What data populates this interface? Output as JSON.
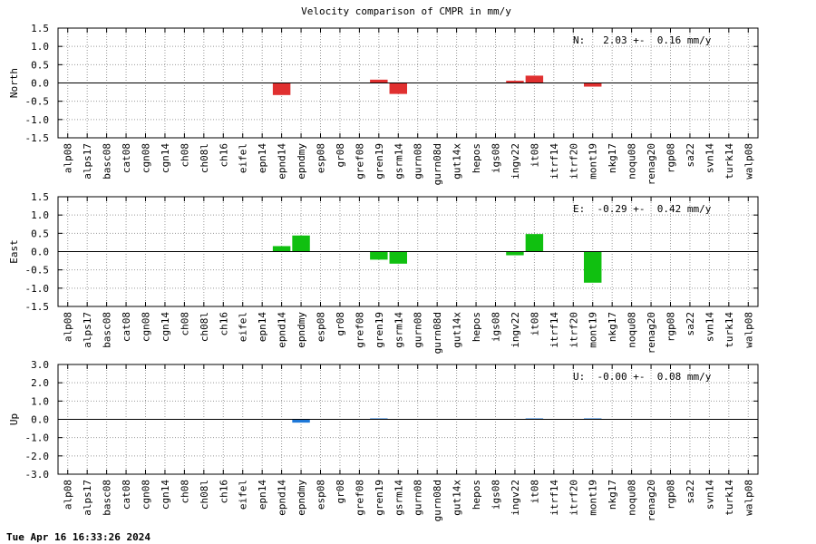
{
  "chart_data": {
    "type": "bar",
    "title": "Velocity comparison of CMPR in mm/y",
    "categories": [
      "alp08",
      "alps17",
      "basc08",
      "cat08",
      "cgn08",
      "cgn14",
      "ch08",
      "ch08l",
      "ch16",
      "eifel",
      "epn14",
      "epnd14",
      "epndmy",
      "esp08",
      "gr08",
      "gref08",
      "gren19",
      "gsrm14",
      "gurn08",
      "gurn08d",
      "gut14x",
      "hepos",
      "igs08",
      "ingv22",
      "it08",
      "itrf14",
      "itrf20",
      "mont19",
      "nkg17",
      "noqu08",
      "renag20",
      "rgp08",
      "sa22",
      "svn14",
      "turk14",
      "walp08"
    ],
    "grid": true,
    "panels": [
      {
        "name": "North",
        "ylabel": "North",
        "ylim": [
          -1.5,
          1.5
        ],
        "yticks": [
          "-1.5",
          "-1.0",
          "-0.5",
          "0.0",
          "0.5",
          "1.0",
          "1.5"
        ],
        "color": "#e03030",
        "annotation": "N:   2.03 +-  0.16 mm/y",
        "values": [
          0,
          0,
          0,
          0,
          0,
          0,
          0,
          0,
          0,
          0,
          0,
          -0.33,
          0,
          0,
          0,
          0,
          0.09,
          -0.3,
          0,
          0,
          0,
          0,
          0,
          0.06,
          0.2,
          0,
          0,
          -0.1,
          0,
          0,
          0,
          0,
          0,
          0,
          0,
          0
        ]
      },
      {
        "name": "East",
        "ylabel": "East",
        "ylim": [
          -1.5,
          1.5
        ],
        "yticks": [
          "-1.5",
          "-1.0",
          "-0.5",
          "0.0",
          "0.5",
          "1.0",
          "1.5"
        ],
        "color": "#10c010",
        "annotation": "E:  -0.29 +-  0.42 mm/y",
        "values": [
          0,
          0,
          0,
          0,
          0,
          0,
          0,
          0,
          0,
          0,
          0,
          0.15,
          0.44,
          0,
          0,
          0,
          -0.22,
          -0.33,
          0,
          0,
          0,
          0,
          0,
          -0.1,
          0.48,
          0,
          0,
          -0.85,
          0,
          0,
          0,
          0,
          0,
          0,
          0,
          0
        ]
      },
      {
        "name": "Up",
        "ylabel": "Up",
        "ylim": [
          -3,
          3
        ],
        "yticks": [
          "-3.0",
          "-2.0",
          "-1.0",
          "0.0",
          "1.0",
          "2.0",
          "3.0"
        ],
        "color": "#1e78d8",
        "annotation": "U:  -0.00 +-  0.08 mm/y",
        "values": [
          0,
          0,
          0,
          0,
          0,
          0,
          0,
          0,
          0,
          0,
          0,
          0,
          -0.18,
          0,
          0,
          0,
          0.05,
          0,
          0,
          0,
          0,
          0,
          0,
          0,
          0.05,
          0,
          0,
          0.05,
          0,
          0,
          0,
          0,
          0,
          0,
          0,
          0
        ]
      }
    ]
  },
  "footer": "Tue Apr 16 16:33:26 2024"
}
